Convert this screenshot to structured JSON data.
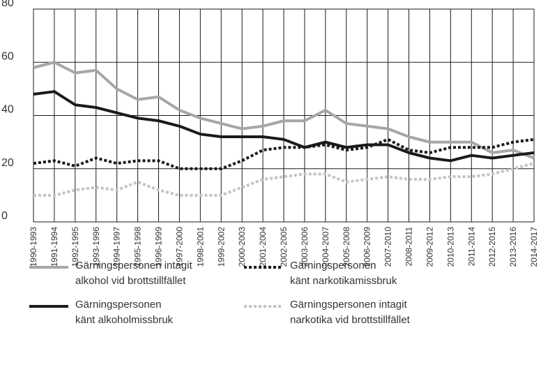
{
  "chart_data": {
    "type": "line",
    "categories": [
      "1990-1993",
      "1991-1994",
      "1992-1995",
      "1993-1996",
      "1994-1997",
      "1995-1998",
      "1996-1999",
      "1997-2000",
      "1998-2001",
      "1999-2002",
      "2000-2003",
      "2001-2004",
      "2002-2005",
      "2003-2006",
      "2004-2007",
      "2005-2008",
      "2006-2009",
      "2007-2010",
      "2008-2011",
      "2009-2012",
      "2010-2013",
      "2011-2014",
      "2012-2015",
      "2013-2016",
      "2014-2017"
    ],
    "series": [
      {
        "name": "Gärningspersonen intagit\nalkohol vid brottstillfället",
        "color": "#a6a6a6",
        "dashed": false,
        "values": [
          58,
          60,
          56,
          57,
          50,
          46,
          47,
          42,
          39,
          37,
          35,
          36,
          38,
          38,
          42,
          37,
          36,
          35,
          32,
          30,
          30,
          30,
          26,
          27,
          24
        ]
      },
      {
        "name": "Gärningspersonen\nkänt alkoholmissbruk",
        "color": "#1a1a1a",
        "dashed": false,
        "values": [
          48,
          49,
          44,
          43,
          41,
          39,
          38,
          36,
          33,
          32,
          32,
          32,
          31,
          28,
          30,
          28,
          29,
          29,
          26,
          24,
          23,
          25,
          24,
          25,
          26
        ]
      },
      {
        "name": "Gärningspersonen\nkänt narkotikamissbruk",
        "color": "#1a1a1a",
        "dashed": true,
        "values": [
          22,
          23,
          21,
          24,
          22,
          23,
          23,
          20,
          20,
          20,
          23,
          27,
          28,
          28,
          29,
          27,
          28,
          31,
          27,
          26,
          28,
          28,
          28,
          30,
          31
        ]
      },
      {
        "name": "Gärningspersonen intagit\nnarkotika vid brottstillfället",
        "color": "#c4c4c4",
        "dashed": true,
        "values": [
          10,
          10,
          12,
          13,
          12,
          15,
          12,
          10,
          10,
          10,
          13,
          16,
          17,
          18,
          18,
          15,
          16,
          17,
          16,
          16,
          17,
          17,
          18,
          20,
          22
        ]
      }
    ],
    "ylim": [
      0,
      80
    ],
    "yticks": [
      0,
      20,
      40,
      60,
      80
    ],
    "grid": true
  }
}
